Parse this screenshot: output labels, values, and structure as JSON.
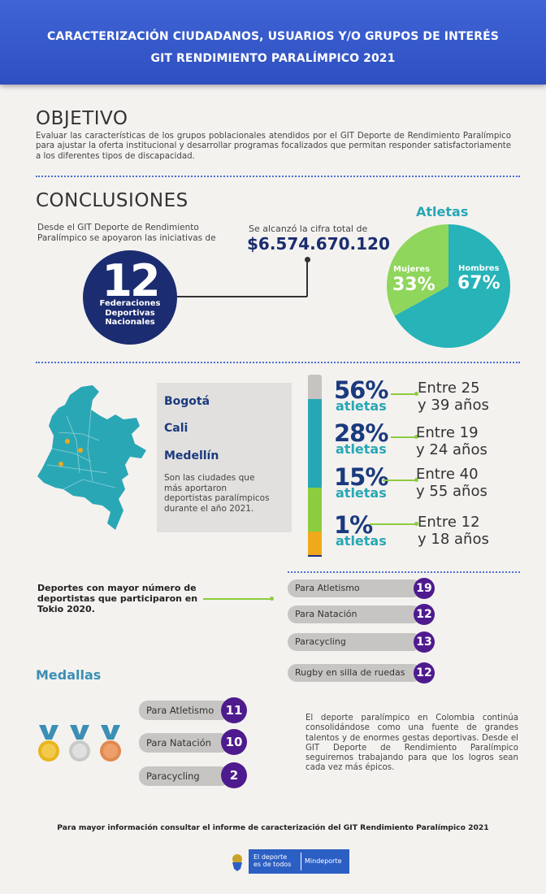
{
  "header": {
    "line1": "CARACTERIZACIÓN CIUDADANOS, USUARIOS Y/O GRUPOS DE INTERÉS",
    "line2": "GIT RENDIMIENTO PARALÍMPICO 2021"
  },
  "objetivo": {
    "title": "OBJETIVO",
    "text": "Evaluar las características de los grupos poblacionales atendidos por el GIT Deporte de Rendimiento Paralímpico para ajustar la oferta institucional y desarrollar programas focalizados que permitan responder satisfactoriamente a los diferentes tipos de discapacidad."
  },
  "conclusiones": {
    "title": "CONCLUSIONES",
    "intro": "Desde el GIT Deporte de Rendimiento Paralímpico se apoyaron las iniciativas de",
    "federaciones_number": "12",
    "federaciones_label": [
      "Federaciones",
      "Deportivas",
      "Nacionales"
    ],
    "cifra_label": "Se alcanzó la cifra total de",
    "cifra_value": "$6.574.670.120"
  },
  "atletas": {
    "title": "Atletas",
    "slices": [
      {
        "label": "Hombres",
        "pct_text": "67%",
        "value": 67,
        "color": "#27b3b7"
      },
      {
        "label": "Mujeres",
        "pct_text": "33%",
        "value": 33,
        "color": "#8fd65c"
      }
    ]
  },
  "ciudades": {
    "names": [
      "Bogotá",
      "Cali",
      "Medellín"
    ],
    "text": "Son las ciudades que más aportaron deportistas paralímpicos durante el año 2021."
  },
  "edades": [
    {
      "pct": "56%",
      "label": "atletas",
      "range": [
        "Entre 25",
        "y 39 años"
      ],
      "value": 56,
      "color": "#27a7b5"
    },
    {
      "pct": "28%",
      "label": "atletas",
      "range": [
        "Entre 19",
        "y 24 años"
      ],
      "value": 28,
      "color": "#8ccc3f"
    },
    {
      "pct": "15%",
      "label": "atletas",
      "range": [
        "Entre 40",
        "y 55 años"
      ],
      "value": 15,
      "color": "#f0a81c"
    },
    {
      "pct": "1%",
      "label": "atletas",
      "range": [
        "Entre 12",
        "y 18 años"
      ],
      "value": 1,
      "color": "#1f2e86"
    }
  ],
  "deportes": {
    "label": "Deportes con mayor número de deportistas que participaron en Tokio 2020.",
    "items": [
      {
        "name": "Para Atletismo",
        "count": "19"
      },
      {
        "name": "Para Natación",
        "count": "12"
      },
      {
        "name": "Paracycling",
        "count": "13"
      },
      {
        "name": "Rugby en silla de ruedas",
        "count": "12"
      }
    ]
  },
  "medallas": {
    "title": "Medallas",
    "medal_icons": [
      {
        "name": "gold-medal-icon",
        "color": "#e8b51c"
      },
      {
        "name": "silver-medal-icon",
        "color": "#c9c9c9"
      },
      {
        "name": "bronze-medal-icon",
        "color": "#e08a4e"
      }
    ],
    "items": [
      {
        "name": "Para Atletismo",
        "count": "11"
      },
      {
        "name": "Para Natación",
        "count": "10"
      },
      {
        "name": "Paracycling",
        "count": "2"
      }
    ]
  },
  "cierre": "El deporte paralímpico en Colombia continúa consolidándose como una fuente de grandes talentos y de enormes gestas deportivas. Desde el GIT Deporte de Rendimiento Paralímpico seguiremos trabajando para que los logros sean cada vez más épicos.",
  "footer": {
    "note": "Para mayor información consultar el informe de caracterización del GIT Rendimiento Paralímpico 2021",
    "logo_line1": "El deporte",
    "logo_line2": "es de todos",
    "logo_brand": "Mindeporte"
  }
}
